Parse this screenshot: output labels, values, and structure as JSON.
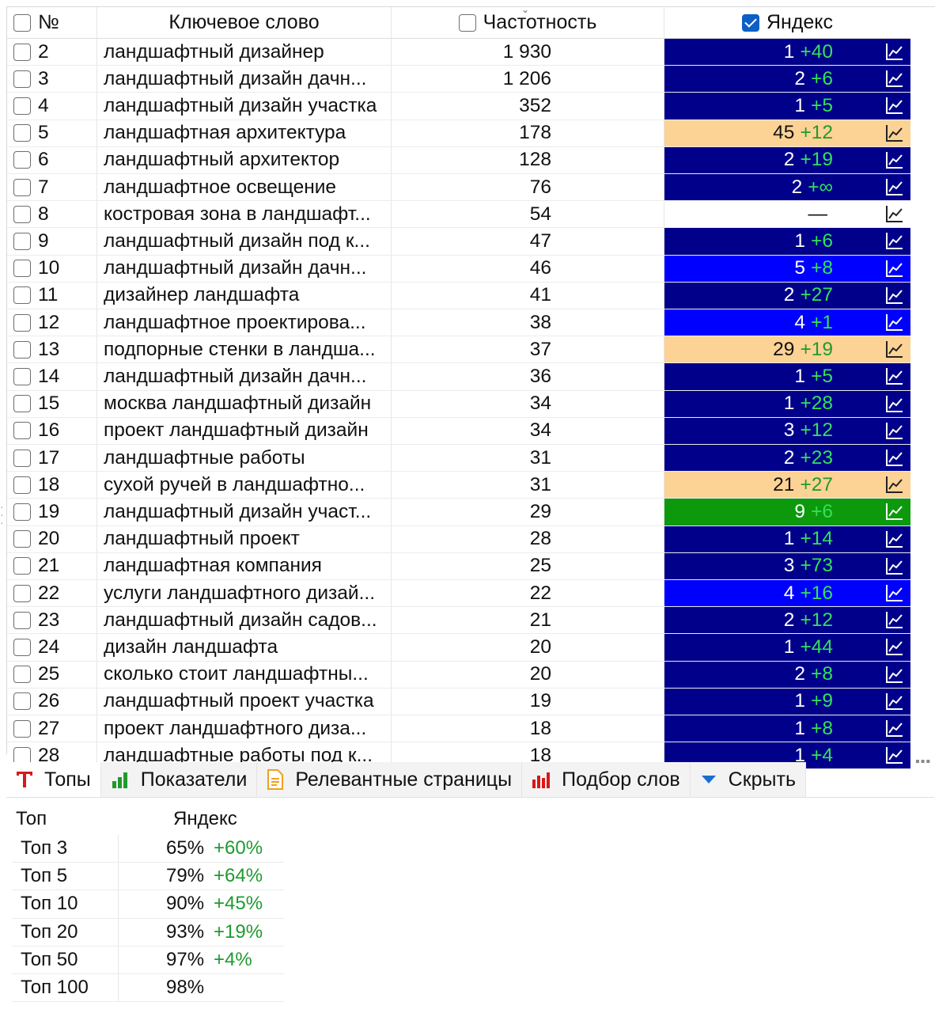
{
  "grid": {
    "headers": {
      "num": "№",
      "keyword": "Ключевое слово",
      "frequency": "Частотность",
      "yandex": "Яндекс"
    },
    "rows": [
      {
        "num": "2",
        "keyword": "ландшафтный дизайнер",
        "freq": "1 930",
        "pos": "1",
        "delta": "+40",
        "bg": "#00008b"
      },
      {
        "num": "3",
        "keyword": "ландшафтный дизайн дачн...",
        "freq": "1 206",
        "pos": "2",
        "delta": "+6",
        "bg": "#00008b"
      },
      {
        "num": "4",
        "keyword": "ландшафтный дизайн участка",
        "freq": "352",
        "pos": "1",
        "delta": "+5",
        "bg": "#00008b"
      },
      {
        "num": "5",
        "keyword": "ландшафтная архитектура",
        "freq": "178",
        "pos": "45",
        "delta": "+12",
        "bg": "#fdd295"
      },
      {
        "num": "6",
        "keyword": "ландшафтный архитектор",
        "freq": "128",
        "pos": "2",
        "delta": "+19",
        "bg": "#00008b"
      },
      {
        "num": "7",
        "keyword": "ландшафтное освещение",
        "freq": "76",
        "pos": "2",
        "delta": "+∞",
        "bg": "#00008b"
      },
      {
        "num": "8",
        "keyword": "костровая зона в ландшафт...",
        "freq": "54",
        "pos": "—",
        "delta": "",
        "bg": "#ffffff"
      },
      {
        "num": "9",
        "keyword": "ландшафтный дизайн под к...",
        "freq": "47",
        "pos": "1",
        "delta": "+6",
        "bg": "#00008b"
      },
      {
        "num": "10",
        "keyword": "ландшафтный дизайн дачн...",
        "freq": "46",
        "pos": "5",
        "delta": "+8",
        "bg": "#0000ff"
      },
      {
        "num": "11",
        "keyword": "дизайнер ландшафта",
        "freq": "41",
        "pos": "2",
        "delta": "+27",
        "bg": "#00008b"
      },
      {
        "num": "12",
        "keyword": "ландшафтное проектирова...",
        "freq": "38",
        "pos": "4",
        "delta": "+1",
        "bg": "#0000ff"
      },
      {
        "num": "13",
        "keyword": "подпорные стенки в ландша...",
        "freq": "37",
        "pos": "29",
        "delta": "+19",
        "bg": "#fdd295"
      },
      {
        "num": "14",
        "keyword": "ландшафтный дизайн дачн...",
        "freq": "36",
        "pos": "1",
        "delta": "+5",
        "bg": "#00008b"
      },
      {
        "num": "15",
        "keyword": "москва ландшафтный дизайн",
        "freq": "34",
        "pos": "1",
        "delta": "+28",
        "bg": "#00008b"
      },
      {
        "num": "16",
        "keyword": "проект ландшафтный дизайн",
        "freq": "34",
        "pos": "3",
        "delta": "+12",
        "bg": "#00008b"
      },
      {
        "num": "17",
        "keyword": "ландшафтные работы",
        "freq": "31",
        "pos": "2",
        "delta": "+23",
        "bg": "#00008b"
      },
      {
        "num": "18",
        "keyword": "сухой ручей в ландшафтно...",
        "freq": "31",
        "pos": "21",
        "delta": "+27",
        "bg": "#fdd295"
      },
      {
        "num": "19",
        "keyword": "ландшафтный дизайн участ...",
        "freq": "29",
        "pos": "9",
        "delta": "+6",
        "bg": "#0c9a0c"
      },
      {
        "num": "20",
        "keyword": "ландшафтный проект",
        "freq": "28",
        "pos": "1",
        "delta": "+14",
        "bg": "#00008b"
      },
      {
        "num": "21",
        "keyword": "ландшафтная компания",
        "freq": "25",
        "pos": "3",
        "delta": "+73",
        "bg": "#00008b"
      },
      {
        "num": "22",
        "keyword": "услуги ландшафтного дизай...",
        "freq": "22",
        "pos": "4",
        "delta": "+16",
        "bg": "#0000ff"
      },
      {
        "num": "23",
        "keyword": "ландшафтный дизайн садов...",
        "freq": "21",
        "pos": "2",
        "delta": "+12",
        "bg": "#00008b"
      },
      {
        "num": "24",
        "keyword": "дизайн ландшафта",
        "freq": "20",
        "pos": "1",
        "delta": "+44",
        "bg": "#00008b"
      },
      {
        "num": "25",
        "keyword": "сколько стоит ландшафтны...",
        "freq": "20",
        "pos": "2",
        "delta": "+8",
        "bg": "#00008b"
      },
      {
        "num": "26",
        "keyword": "ландшафтный проект участка",
        "freq": "19",
        "pos": "1",
        "delta": "+9",
        "bg": "#00008b"
      },
      {
        "num": "27",
        "keyword": "проект ландшафтного диза...",
        "freq": "18",
        "pos": "1",
        "delta": "+8",
        "bg": "#00008b"
      },
      {
        "num": "28",
        "keyword": "ландшафтные работы под к...",
        "freq": "18",
        "pos": "1",
        "delta": "+4",
        "bg": "#00008b"
      }
    ]
  },
  "tabs": [
    {
      "label": "Топы",
      "icon": "t-letter-icon"
    },
    {
      "label": "Показатели",
      "icon": "bar-chart-green-icon"
    },
    {
      "label": "Релевантные страницы",
      "icon": "document-icon"
    },
    {
      "label": "Подбор слов",
      "icon": "bar-chart-red-icon"
    },
    {
      "label": "Скрыть",
      "icon": "triangle-down-icon"
    }
  ],
  "tops": {
    "headers": {
      "top": "Топ",
      "yandex": "Яндекс"
    },
    "rows": [
      {
        "label": "Топ 3",
        "pct": "65%",
        "delta": "+60%"
      },
      {
        "label": "Топ 5",
        "pct": "79%",
        "delta": "+64%"
      },
      {
        "label": "Топ 10",
        "pct": "90%",
        "delta": "+45%"
      },
      {
        "label": "Топ 20",
        "pct": "93%",
        "delta": "+19%"
      },
      {
        "label": "Топ 50",
        "pct": "97%",
        "delta": "+4%"
      },
      {
        "label": "Топ 100",
        "pct": "98%",
        "delta": ""
      }
    ]
  },
  "colors": {
    "dark_blue": "#00008b",
    "blue": "#0000ff",
    "orange": "#fdd295",
    "green": "#0c9a0c",
    "delta_green": "#35e05a",
    "tops_green": "#1f9a2f",
    "checkbox_blue": "#0b5fc7"
  }
}
